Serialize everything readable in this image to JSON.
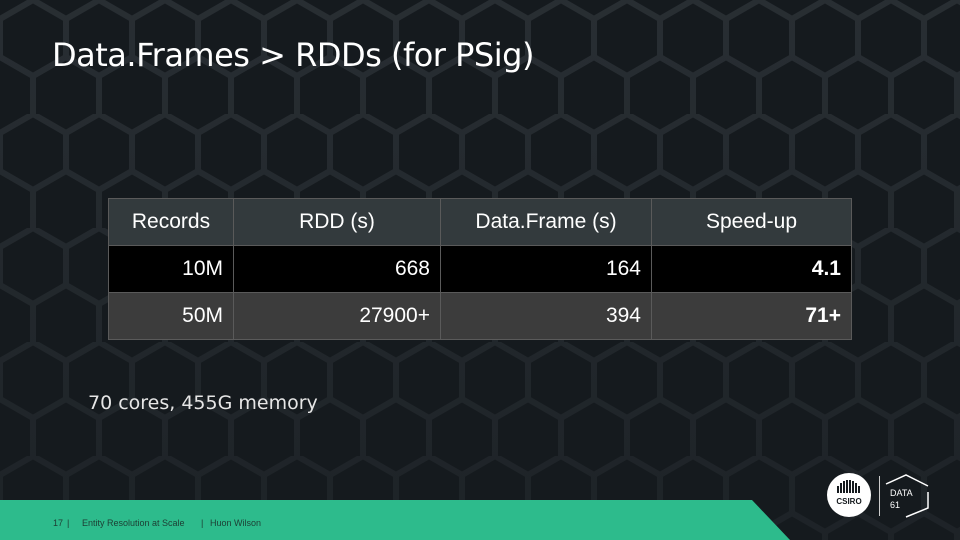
{
  "slide": {
    "title": "Data.Frames > RDDs (for PSig)",
    "note": "70 cores, 455G memory"
  },
  "table": {
    "headers": [
      "Records",
      "RDD (s)",
      "Data.Frame (s)",
      "Speed-up"
    ],
    "rows": [
      {
        "records": "10M",
        "rdd": "668",
        "dataframe": "164",
        "speedup": "4.1"
      },
      {
        "records": "50M",
        "rdd": "27900+",
        "dataframe": "394",
        "speedup": "71+"
      }
    ]
  },
  "footer": {
    "slide_number": "17",
    "separator": "|",
    "title": "Entity Resolution at Scale",
    "author": "Huon Wilson"
  },
  "logos": {
    "csiro": "CSIRO",
    "data61_line1": "DATA",
    "data61_line2": "61"
  },
  "colors": {
    "background": "#151a1e",
    "accent_green": "#2dbb8c",
    "header_cell": "#333a3d"
  },
  "icons": [
    "hexagon-pattern",
    "csiro-logo",
    "data61-logo"
  ]
}
